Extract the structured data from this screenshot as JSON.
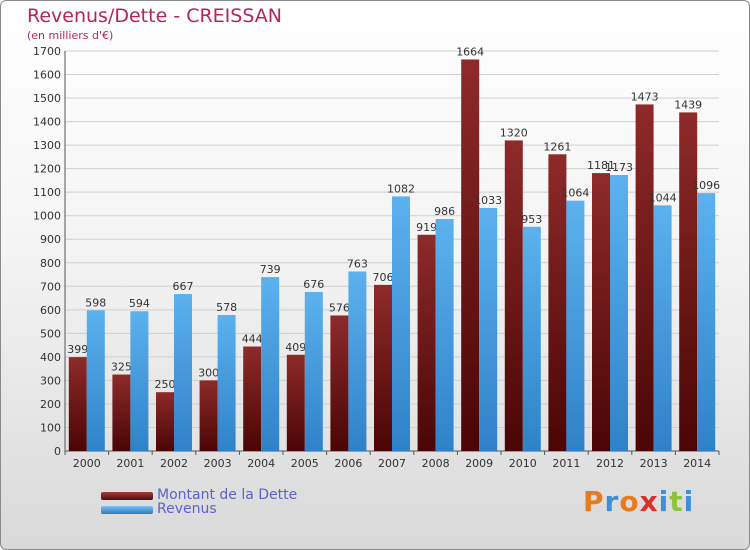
{
  "title": "Revenus/Dette - CREISSAN",
  "subtitle": "(en milliers d'€)",
  "chart_data": {
    "type": "bar",
    "categories": [
      "2000",
      "2001",
      "2002",
      "2003",
      "2004",
      "2005",
      "2006",
      "2007",
      "2008",
      "2009",
      "2010",
      "2011",
      "2012",
      "2013",
      "2014"
    ],
    "series": [
      {
        "name": "Montant de la Dette",
        "color": "#7a1a1a",
        "values": [
          399,
          325,
          250,
          300,
          444,
          409,
          576,
          706,
          919,
          1664,
          1320,
          1261,
          1181,
          1473,
          1439
        ]
      },
      {
        "name": "Revenus",
        "color": "#3a94dc",
        "values": [
          598,
          594,
          667,
          578,
          739,
          676,
          763,
          1082,
          986,
          1033,
          953,
          1064,
          1173,
          1044,
          1096
        ]
      }
    ],
    "ylim": [
      0,
      1700
    ],
    "yticks": [
      0,
      100,
      200,
      300,
      400,
      500,
      600,
      700,
      800,
      900,
      1000,
      1100,
      1200,
      1300,
      1400,
      1500,
      1600,
      1700
    ],
    "grid": true,
    "legend_position": "bottom-left"
  },
  "legend": {
    "debt_label": "Montant de la Dette",
    "revenue_label": "Revenus"
  },
  "brand": {
    "letters": [
      "P",
      "r",
      "o",
      "x",
      "i",
      "t",
      "i"
    ],
    "colors": [
      "#e87b1c",
      "#3f8fd8",
      "#e87b1c",
      "#d8312b",
      "#3f8fd8",
      "#8cc43c",
      "#3f8fd8"
    ]
  }
}
